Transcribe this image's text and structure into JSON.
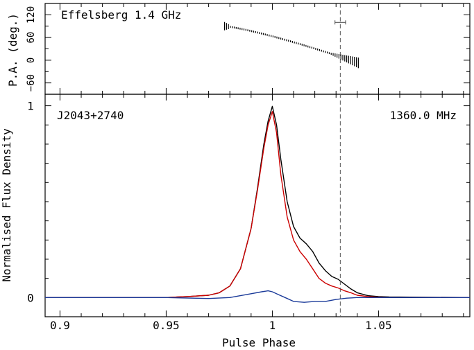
{
  "chart_data": [
    {
      "type": "scatter",
      "panel": "position-angle",
      "title": "Effelsberg 1.4 GHz",
      "xlabel": "",
      "ylabel": "P.A. (deg.)",
      "xlim": [
        0.893,
        1.093
      ],
      "ylim": [
        -90,
        150
      ],
      "y_ticks": [
        -60,
        0,
        60,
        120
      ],
      "y_tick_labels": [
        "−60",
        "0",
        "60",
        "120"
      ],
      "pa_points": {
        "phase_start": 0.9775,
        "phase_end": 1.0405,
        "pa_start": 90,
        "pa_end": -7,
        "count": 70
      },
      "error_bar_example": {
        "phase": 1.032,
        "pa": 100,
        "phase_error": 0.0025
      }
    },
    {
      "type": "line",
      "panel": "profile",
      "source_label": "J2043+2740",
      "frequency_label": "1360.0 MHz",
      "xlabel": "Pulse Phase",
      "ylabel": "Normalised Flux Density",
      "xlim": [
        0.893,
        1.093
      ],
      "ylim": [
        -0.1,
        1.06
      ],
      "x_ticks": [
        0.9,
        0.95,
        1.0,
        1.05
      ],
      "x_tick_labels": [
        "0.9",
        "0.95",
        "1",
        "1.05"
      ],
      "y_tick_labels_shown": [
        0,
        1
      ],
      "y_tick_label_text": [
        "0",
        "1"
      ],
      "marker_phase": 1.032,
      "series": [
        {
          "name": "Total intensity",
          "color": "#000000",
          "x": [
            0.893,
            0.95,
            0.96,
            0.97,
            0.975,
            0.98,
            0.985,
            0.99,
            0.993,
            0.996,
            0.998,
            1.0,
            1.002,
            1.004,
            1.007,
            1.01,
            1.013,
            1.016,
            1.019,
            1.022,
            1.025,
            1.028,
            1.031,
            1.034,
            1.037,
            1.04,
            1.045,
            1.05,
            1.055,
            1.093
          ],
          "y": [
            0.0,
            0.0,
            0.005,
            0.012,
            0.025,
            0.06,
            0.15,
            0.36,
            0.57,
            0.8,
            0.92,
            0.997,
            0.9,
            0.72,
            0.5,
            0.37,
            0.31,
            0.28,
            0.24,
            0.18,
            0.14,
            0.11,
            0.095,
            0.07,
            0.045,
            0.025,
            0.01,
            0.005,
            0.003,
            0.0
          ]
        },
        {
          "name": "Linear polarization",
          "color": "#cc0000",
          "x": [
            0.893,
            0.95,
            0.96,
            0.97,
            0.975,
            0.98,
            0.985,
            0.99,
            0.993,
            0.996,
            0.998,
            1.0,
            1.002,
            1.004,
            1.007,
            1.01,
            1.013,
            1.016,
            1.019,
            1.022,
            1.025,
            1.028,
            1.031,
            1.034,
            1.037,
            1.04,
            1.045,
            1.05,
            1.055,
            1.093
          ],
          "y": [
            0.0,
            0.0,
            0.005,
            0.012,
            0.025,
            0.06,
            0.15,
            0.36,
            0.56,
            0.78,
            0.9,
            0.97,
            0.86,
            0.64,
            0.42,
            0.3,
            0.24,
            0.2,
            0.15,
            0.1,
            0.075,
            0.06,
            0.05,
            0.035,
            0.025,
            0.012,
            0.005,
            0.002,
            0.0,
            0.0
          ]
        },
        {
          "name": "Circular polarization",
          "color": "#1a3a99",
          "x": [
            0.893,
            0.95,
            0.97,
            0.98,
            0.99,
            0.995,
            0.998,
            1.0,
            1.003,
            1.006,
            1.01,
            1.015,
            1.02,
            1.025,
            1.03,
            1.035,
            1.04,
            1.045,
            1.05,
            1.093
          ],
          "y": [
            0.0,
            0.0,
            -0.005,
            0.0,
            0.02,
            0.03,
            0.035,
            0.03,
            0.015,
            0.0,
            -0.02,
            -0.025,
            -0.02,
            -0.02,
            -0.01,
            -0.003,
            0.0,
            0.0,
            0.0,
            0.0
          ]
        }
      ]
    }
  ]
}
